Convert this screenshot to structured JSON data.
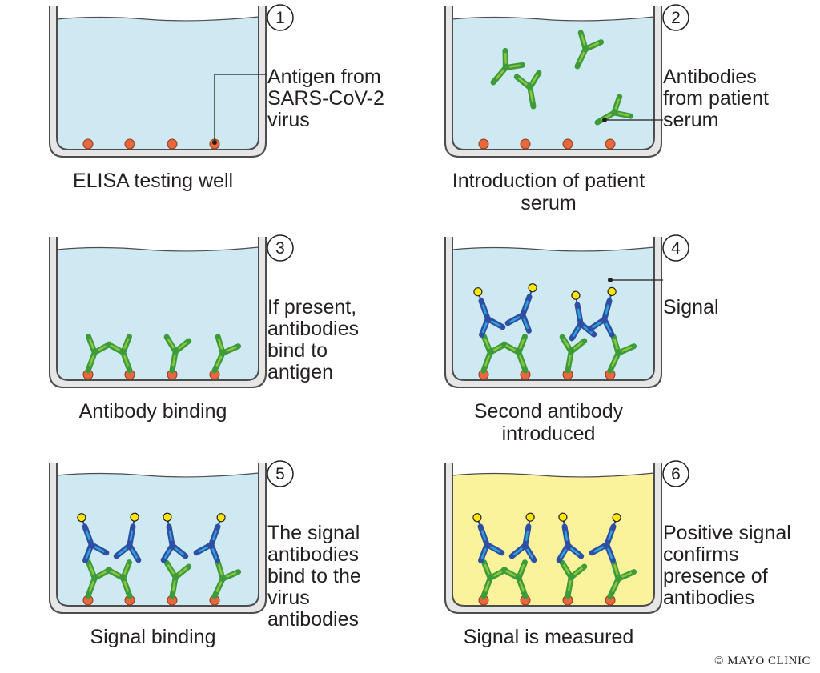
{
  "colors": {
    "liquid": "#cfe9f3",
    "liquid_positive": "#fbf29c",
    "well_outline": "#4d4d4f",
    "well_fill": "#e6e6e6",
    "antigen": "#e8673c",
    "antibody_green": "#3d9b3a",
    "antibody_light": "#8cc63f",
    "antibody_blue": "#2e4fa3",
    "antibody_cyan": "#2fa3d6",
    "signal": "#ffe600"
  },
  "steps": [
    {
      "number": "1",
      "caption": [
        "ELISA testing well"
      ],
      "annotation": [
        "Antigen from",
        "SARS-CoV-2",
        "virus"
      ],
      "liquid": "blue",
      "content": "antigen"
    },
    {
      "number": "2",
      "caption": [
        "Introduction of patient",
        "serum"
      ],
      "annotation": [
        "Antibodies",
        "from patient",
        "serum"
      ],
      "liquid": "blue",
      "content": "free_antibodies"
    },
    {
      "number": "3",
      "caption": [
        "Antibody binding"
      ],
      "annotation": [
        "If present,",
        "antibodies",
        "bind to",
        "antigen"
      ],
      "liquid": "blue",
      "content": "bound"
    },
    {
      "number": "4",
      "caption": [
        "Second antibody",
        "introduced"
      ],
      "annotation": [
        "Signal"
      ],
      "liquid": "blue",
      "content": "second_antibody"
    },
    {
      "number": "5",
      "caption": [
        "Signal binding"
      ],
      "annotation": [
        "The signal",
        "antibodies",
        "bind to the",
        "virus",
        "antibodies"
      ],
      "liquid": "blue",
      "content": "stacked"
    },
    {
      "number": "6",
      "caption": [
        "Signal is measured"
      ],
      "annotation": [
        "Positive signal",
        "confirms",
        "presence of",
        "antibodies"
      ],
      "liquid": "yellow",
      "content": "stacked"
    }
  ],
  "credit": "© MAYO CLINIC"
}
